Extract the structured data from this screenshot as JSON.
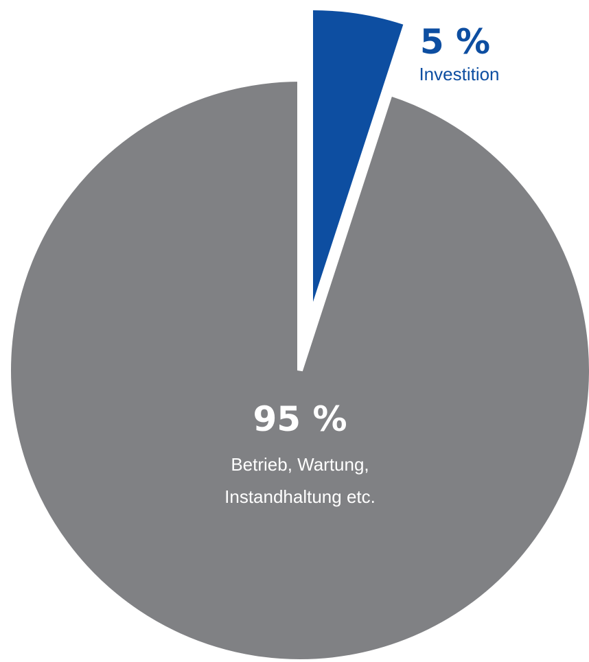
{
  "chart_data": {
    "type": "pie",
    "slices": [
      {
        "value": 95,
        "value_label": "95 %",
        "label_lines": [
          "Betrieb, Wartung,",
          "Instandhaltung etc."
        ],
        "color": "#808184",
        "exploded": false
      },
      {
        "value": 5,
        "value_label": "5 %",
        "label_lines": [
          "Investition"
        ],
        "color": "#0d4ea1",
        "exploded": true
      }
    ],
    "start_angle_deg": 0,
    "direction": "clockwise",
    "legend": "none"
  },
  "colors": {
    "background": "#ffffff",
    "text_on_gray": "#ffffff",
    "text_blue": "#0d4ea1"
  }
}
